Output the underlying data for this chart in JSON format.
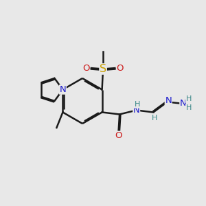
{
  "bg": "#e8e8e8",
  "bond_color": "#1a1a1a",
  "bond_lw": 1.8,
  "dbo": 0.06,
  "colors": {
    "N": "#1a1acc",
    "O": "#cc1a1a",
    "S": "#c8a000",
    "H": "#3a8888",
    "C": "#1a1a1a"
  },
  "fs": 9.5,
  "fsH": 8.0,
  "xlim": [
    0,
    10
  ],
  "ylim": [
    0,
    10
  ]
}
